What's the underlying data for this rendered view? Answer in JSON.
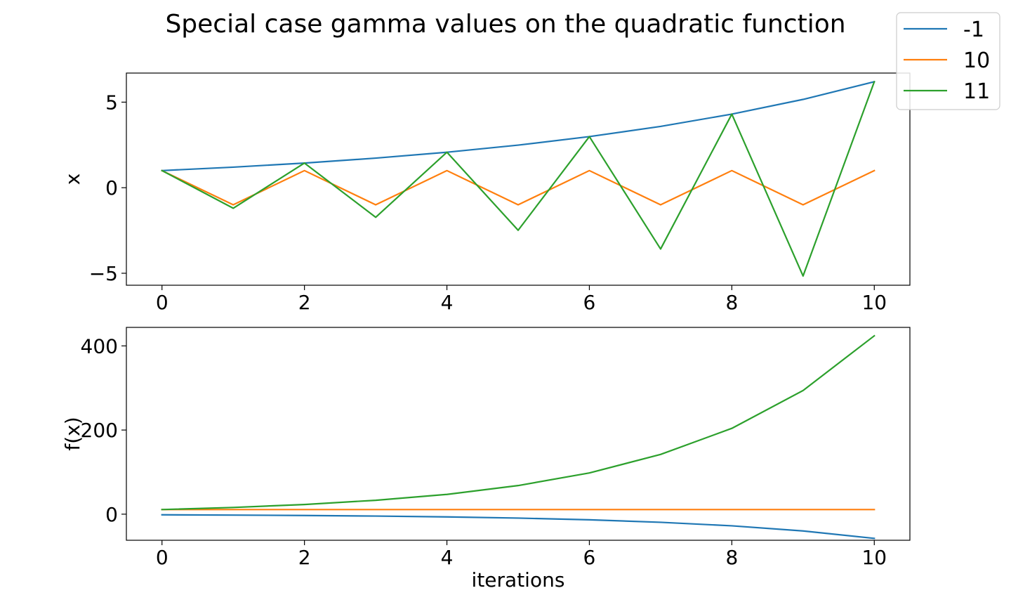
{
  "figure": {
    "title": "Special case gamma values on the quadratic function"
  },
  "legend": {
    "placement": "upper-right",
    "entries": [
      {
        "label": "-1",
        "color": "#1f77b4"
      },
      {
        "label": "10",
        "color": "#ff7f0e"
      },
      {
        "label": "11",
        "color": "#2ca02c"
      }
    ]
  },
  "chart_data": [
    {
      "type": "line",
      "title": "",
      "xlabel": "",
      "ylabel": "x",
      "xlim": [
        -0.5,
        10.5
      ],
      "ylim": [
        -5.7,
        6.7
      ],
      "xticks": [
        0,
        2,
        4,
        6,
        8,
        10
      ],
      "xtick_labels": [
        "0",
        "2",
        "4",
        "6",
        "8",
        "10"
      ],
      "yticks": [
        -5,
        0,
        5
      ],
      "ytick_labels": [
        "−5",
        "0",
        "5"
      ],
      "grid": false,
      "x": [
        0,
        1,
        2,
        3,
        4,
        5,
        6,
        7,
        8,
        9,
        10
      ],
      "series": [
        {
          "name": "-1",
          "color": "#1f77b4",
          "values": [
            1.0,
            1.2,
            1.44,
            1.728,
            2.074,
            2.488,
            2.986,
            3.583,
            4.3,
            5.16,
            6.192
          ]
        },
        {
          "name": "10",
          "color": "#ff7f0e",
          "values": [
            1,
            -1,
            1,
            -1,
            1,
            -1,
            1,
            -1,
            1,
            -1,
            1
          ]
        },
        {
          "name": "11",
          "color": "#2ca02c",
          "values": [
            1.0,
            -1.2,
            1.44,
            -1.728,
            2.074,
            -2.488,
            2.986,
            -3.583,
            4.3,
            -5.16,
            6.192
          ]
        }
      ]
    },
    {
      "type": "line",
      "title": "",
      "xlabel": "iterations",
      "ylabel": "f(x)",
      "xlim": [
        -0.5,
        10.5
      ],
      "ylim": [
        -62,
        444
      ],
      "xticks": [
        0,
        2,
        4,
        6,
        8,
        10
      ],
      "xtick_labels": [
        "0",
        "2",
        "4",
        "6",
        "8",
        "10"
      ],
      "yticks": [
        0,
        200,
        400
      ],
      "ytick_labels": [
        "0",
        "200",
        "400"
      ],
      "grid": false,
      "x": [
        0,
        1,
        2,
        3,
        4,
        5,
        6,
        7,
        8,
        9,
        10
      ],
      "series": [
        {
          "name": "-1",
          "color": "#1f77b4",
          "values": [
            -1.5,
            -2.2,
            -3.1,
            -4.5,
            -6.5,
            -9.3,
            -13.4,
            -19.3,
            -27.7,
            -39.9,
            -57.5
          ]
        },
        {
          "name": "10",
          "color": "#ff7f0e",
          "values": [
            11,
            11,
            11,
            11,
            11,
            11,
            11,
            11,
            11,
            11,
            11
          ]
        },
        {
          "name": "11",
          "color": "#2ca02c",
          "values": [
            11,
            16,
            23,
            33,
            47,
            68,
            98,
            142,
            204,
            294,
            424
          ]
        }
      ]
    }
  ]
}
